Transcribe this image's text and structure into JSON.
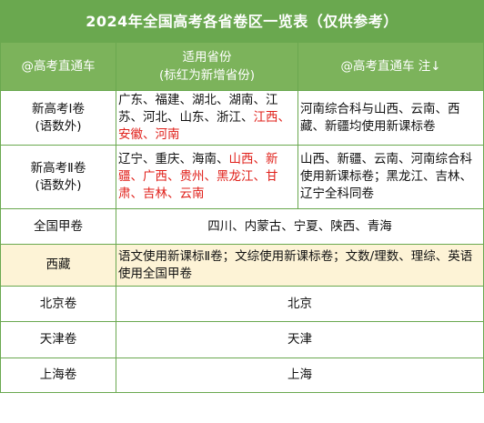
{
  "title": "2024年全国高考各省卷区一览表（仅供参考）",
  "header": {
    "col1": "@高考直通车",
    "col2_line1": "适用省份",
    "col2_line2": "(标红为新增省份)",
    "col3": "@高考直通车 注↓"
  },
  "rows": [
    {
      "name_line1": "新高考Ⅰ卷",
      "name_line2": "(语数外)",
      "provinces_black": "广东、福建、湖北、湖南、江苏、河北、山东、浙江、",
      "provinces_red": "江西、安徽、河南",
      "note": "河南综合科与山西、云南、西藏、新疆均使用新课标卷"
    },
    {
      "name_line1": "新高考Ⅱ卷",
      "name_line2": "(语数外)",
      "provinces_black": "辽宁、重庆、海南、",
      "provinces_red": "山西、新疆、广西、贵州、黑龙江、甘肃、吉林、云南",
      "note": "山西、新疆、云南、河南综合科使用新课标卷；黑龙江、吉林、辽宁全科同卷"
    },
    {
      "name": "全国甲卷",
      "provinces": "四川、内蒙古、宁夏、陕西、青海"
    },
    {
      "name": "西藏",
      "provinces": "语文使用新课标Ⅱ卷；文综使用新课标卷；文数/理数、理综、英语使用全国甲卷"
    },
    {
      "name": "北京卷",
      "provinces": "北京"
    },
    {
      "name": "天津卷",
      "provinces": "天津"
    },
    {
      "name": "上海卷",
      "provinces": "上海"
    }
  ],
  "colors": {
    "green": "#6aa84f",
    "header_green": "#7cb35b",
    "red": "#e0211b",
    "tibet_bg": "#fdf3d6"
  }
}
